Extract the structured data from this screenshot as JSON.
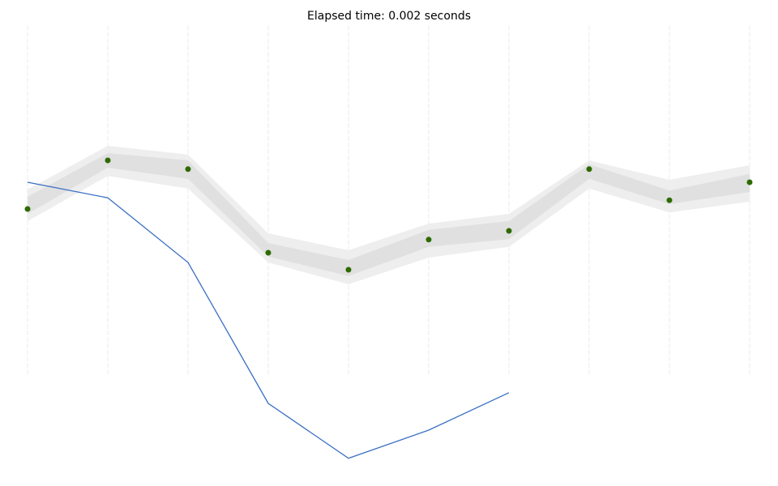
{
  "chart_data": {
    "type": "line",
    "title": "Elapsed time: 0.002 seconds",
    "x": [
      0,
      1,
      2,
      3,
      4,
      5,
      6,
      7,
      8,
      9
    ],
    "xlim": [
      0,
      9
    ],
    "xticks": [
      0,
      1,
      2,
      3,
      4,
      5,
      6,
      7,
      8,
      9
    ],
    "ylim": [
      0,
      10
    ],
    "grid": true,
    "bands": [
      {
        "color": "#eeeeee",
        "upper": [
          6.1,
          7.0,
          6.82,
          5.2,
          4.85,
          5.4,
          5.6,
          6.7,
          6.3,
          6.6
        ],
        "lower": [
          5.45,
          6.38,
          6.12,
          4.6,
          4.15,
          4.7,
          4.92,
          6.12,
          5.63,
          5.85
        ]
      },
      {
        "color": "#e0e0e0",
        "upper": [
          5.95,
          6.85,
          6.7,
          5.0,
          4.65,
          5.27,
          5.45,
          6.62,
          6.08,
          6.42
        ],
        "lower": [
          5.6,
          6.55,
          6.32,
          4.72,
          4.32,
          4.92,
          5.08,
          6.32,
          5.8,
          6.05
        ]
      }
    ],
    "series": [
      {
        "color": "#3a6fc4",
        "values": [
          6.25,
          5.93,
          4.6,
          1.7,
          0.57,
          1.15,
          1.92,
          null,
          null,
          null
        ]
      },
      {
        "color": "#2d6a00",
        "values": [
          5.7,
          6.7,
          6.52,
          4.8,
          4.45,
          5.07,
          5.25,
          6.52,
          5.88,
          6.25
        ]
      }
    ]
  }
}
